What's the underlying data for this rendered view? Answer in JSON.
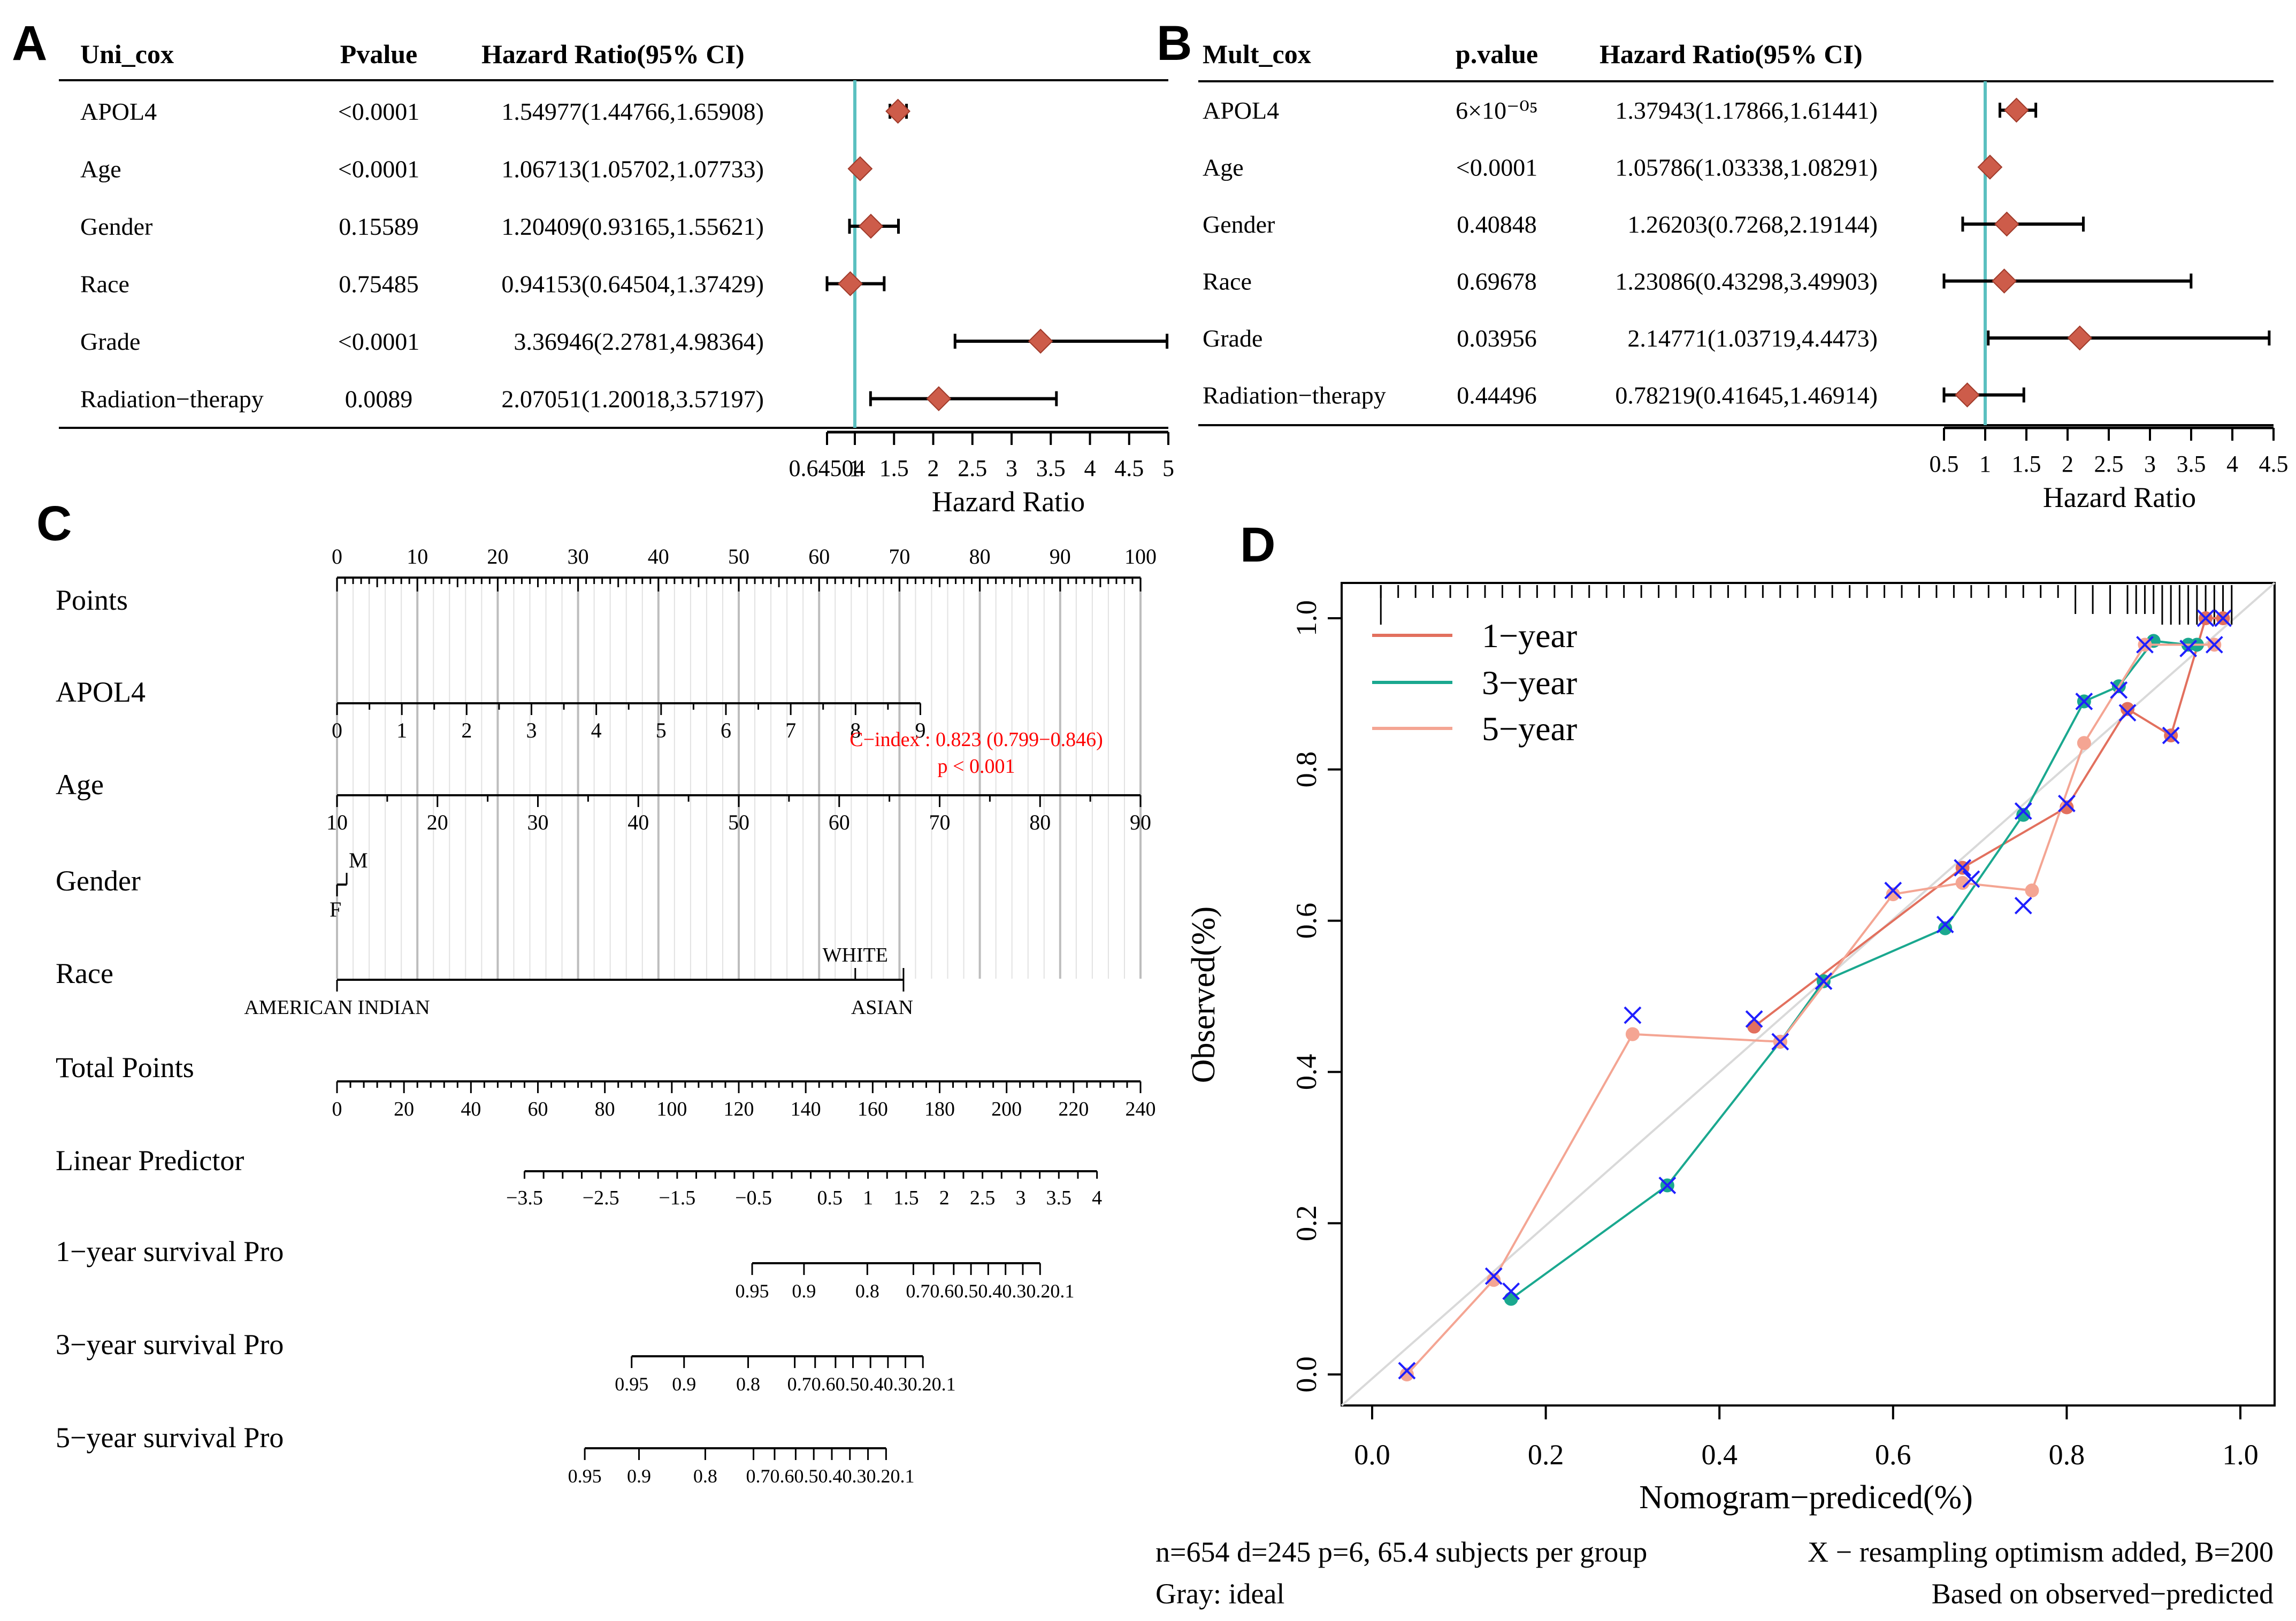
{
  "panels": {
    "a": "A",
    "b": "B",
    "c": "C",
    "d": "D"
  },
  "colors": {
    "diamond": "#cd5c4a",
    "diamond_stroke": "#a03a2a",
    "ref_line": "#5bc0c0",
    "cindex": "#ff0000",
    "line1": "#e2705e",
    "line3": "#1aa88f",
    "line5": "#f4a593",
    "cross": "#1f1fff",
    "ideal": "#d9d9d9"
  },
  "chart_data": [
    {
      "type": "forest",
      "id": "uni_cox",
      "headers": {
        "label": "Uni_cox",
        "p": "Pvalue",
        "hr": "Hazard Ratio(95% CI)"
      },
      "rows": [
        {
          "label": "APOL4",
          "p": "<0.0001",
          "hr_text": "1.54977(1.44766,1.65908)",
          "hr": 1.54977,
          "lo": 1.44766,
          "hi": 1.65908
        },
        {
          "label": "Age",
          "p": "<0.0001",
          "hr_text": "1.06713(1.05702,1.07733)",
          "hr": 1.06713,
          "lo": 1.05702,
          "hi": 1.07733
        },
        {
          "label": "Gender",
          "p": "0.15589",
          "hr_text": "1.20409(0.93165,1.55621)",
          "hr": 1.20409,
          "lo": 0.93165,
          "hi": 1.55621
        },
        {
          "label": "Race",
          "p": "0.75485",
          "hr_text": "0.94153(0.64504,1.37429)",
          "hr": 0.94153,
          "lo": 0.64504,
          "hi": 1.37429
        },
        {
          "label": "Grade",
          "p": "<0.0001",
          "hr_text": "3.36946(2.2781,4.98364)",
          "hr": 3.36946,
          "lo": 2.2781,
          "hi": 4.98364
        },
        {
          "label": "Radiation−therapy",
          "p": "0.0089",
          "hr_text": "2.07051(1.20018,3.57197)",
          "hr": 2.07051,
          "lo": 1.20018,
          "hi": 3.57197
        }
      ],
      "xrange": [
        0.64504,
        5
      ],
      "ref": 1,
      "ticks": [
        0.64504,
        1,
        1.5,
        2,
        2.5,
        3,
        3.5,
        4,
        4.5,
        5
      ],
      "tick_labels": [
        "0.64504",
        "1",
        "1.5",
        "2",
        "2.5",
        "3",
        "3.5",
        "4",
        "4.5",
        "5"
      ],
      "xlabel": "Hazard Ratio"
    },
    {
      "type": "forest",
      "id": "mult_cox",
      "headers": {
        "label": "Mult_cox",
        "p": "p.value",
        "hr": "Hazard Ratio(95% CI)"
      },
      "rows": [
        {
          "label": "APOL4",
          "p": "6×10⁻⁰⁵",
          "hr_text": "1.37943(1.17866,1.61441)",
          "hr": 1.37943,
          "lo": 1.17866,
          "hi": 1.61441
        },
        {
          "label": "Age",
          "p": "<0.0001",
          "hr_text": "1.05786(1.03338,1.08291)",
          "hr": 1.05786,
          "lo": 1.03338,
          "hi": 1.08291
        },
        {
          "label": "Gender",
          "p": "0.40848",
          "hr_text": "1.26203(0.7268,2.19144)",
          "hr": 1.26203,
          "lo": 0.7268,
          "hi": 2.19144
        },
        {
          "label": "Race",
          "p": "0.69678",
          "hr_text": "1.23086(0.43298,3.49903)",
          "hr": 1.23086,
          "lo": 0.43298,
          "hi": 3.49903
        },
        {
          "label": "Grade",
          "p": "0.03956",
          "hr_text": "2.14771(1.03719,4.4473)",
          "hr": 2.14771,
          "lo": 1.03719,
          "hi": 4.4473
        },
        {
          "label": "Radiation−therapy",
          "p": "0.44496",
          "hr_text": "0.78219(0.41645,1.46914)",
          "hr": 0.78219,
          "lo": 0.41645,
          "hi": 1.46914
        }
      ],
      "xrange": [
        0.5,
        4.5
      ],
      "ref": 1,
      "ticks": [
        0.5,
        1,
        1.5,
        2,
        2.5,
        3,
        3.5,
        4,
        4.5
      ],
      "tick_labels": [
        "0.5",
        "1",
        "1.5",
        "2",
        "2.5",
        "3",
        "3.5",
        "4",
        "4.5"
      ],
      "xlabel": "Hazard Ratio"
    },
    {
      "type": "nomogram",
      "id": "nomogram",
      "cindex": "C−index : 0.823 (0.799−0.846)",
      "pvalue": "p < 0.001",
      "rows": [
        {
          "label": "Points",
          "kind": "points",
          "range": [
            0,
            100
          ],
          "labels": [
            "0",
            "10",
            "20",
            "30",
            "40",
            "50",
            "60",
            "70",
            "80",
            "90",
            "100"
          ],
          "values": [
            0,
            10,
            20,
            30,
            40,
            50,
            60,
            70,
            80,
            90,
            100
          ]
        },
        {
          "label": "APOL4",
          "kind": "var",
          "range": [
            0,
            72.6
          ],
          "labels": [
            "0",
            "1",
            "2",
            "3",
            "4",
            "5",
            "6",
            "7",
            "8",
            "9"
          ],
          "values": [
            0,
            1,
            2,
            3,
            4,
            5,
            6,
            7,
            8,
            9
          ],
          "vrange": [
            0,
            9
          ]
        },
        {
          "label": "Age",
          "kind": "var",
          "range": [
            0,
            100
          ],
          "labels": [
            "10",
            "20",
            "30",
            "40",
            "50",
            "60",
            "70",
            "80",
            "90"
          ],
          "values": [
            10,
            20,
            30,
            40,
            50,
            60,
            70,
            80,
            90
          ],
          "vrange": [
            10,
            90
          ]
        },
        {
          "label": "Gender",
          "kind": "cat",
          "above": "M",
          "below": "F",
          "points": 1.2
        },
        {
          "label": "Race",
          "kind": "cat3",
          "left": "AMERICAN INDIAN",
          "mid": "WHITE",
          "right": "ASIAN",
          "mid_points": 64.5,
          "right_points": 70.5
        },
        {
          "label": "Total Points",
          "kind": "points",
          "range": [
            0,
            240
          ],
          "labels": [
            "0",
            "20",
            "40",
            "60",
            "80",
            "100",
            "120",
            "140",
            "160",
            "180",
            "200",
            "220",
            "240"
          ],
          "values": [
            0,
            20,
            40,
            60,
            80,
            100,
            120,
            140,
            160,
            180,
            200,
            220,
            240
          ]
        },
        {
          "label": "Linear Predictor",
          "kind": "lp",
          "labels": [
            "−3.5",
            "−2.5",
            "−1.5",
            "−0.5",
            "0.5",
            "1",
            "1.5",
            "2",
            "2.5",
            "3",
            "3.5",
            "4"
          ],
          "values": [
            -3.5,
            -2.5,
            -1.5,
            -0.5,
            0.5,
            1,
            1.5,
            2,
            2.5,
            3,
            3.5,
            4
          ],
          "vrange": [
            -3.5,
            4
          ],
          "prange": [
            56,
            227
          ]
        },
        {
          "label": "1−year survival Pro",
          "kind": "surv",
          "labels": [
            "0.95",
            "0.9",
            "0.8",
            "0.70.60.50.40.30.20.1"
          ],
          "prange": [
            124,
            210
          ]
        },
        {
          "label": "3−year survival Pro",
          "kind": "surv",
          "labels": [
            "0.95",
            "0.9",
            "0.8",
            "0.70.60.50.40.30.20.1"
          ],
          "prange": [
            88,
            175
          ]
        },
        {
          "label": "5−year survival Pro",
          "kind": "surv",
          "labels": [
            "0.95",
            "0.9",
            "0.8",
            "0.70.60.50.40.30.20.1"
          ],
          "prange": [
            74,
            164
          ]
        }
      ]
    },
    {
      "type": "line",
      "id": "calibration",
      "xlabel": "Nomogram−prediced(%)",
      "ylabel": "Observed(%)",
      "xlim": [
        -0.04,
        1.04
      ],
      "ylim": [
        -0.04,
        1.04
      ],
      "xticks": [
        "0.0",
        "0.2",
        "0.4",
        "0.6",
        "0.8",
        "1.0"
      ],
      "yticks": [
        "0.0",
        "0.2",
        "0.4",
        "0.6",
        "0.8",
        "1.0"
      ],
      "legend": [
        "1−year",
        "3−year",
        "5−year"
      ],
      "series": [
        {
          "name": "1−year",
          "x": [
            0.44,
            0.68,
            0.8,
            0.87,
            0.92,
            0.96,
            0.98
          ],
          "y": [
            0.46,
            0.67,
            0.75,
            0.88,
            0.845,
            1.0,
            1.0
          ]
        },
        {
          "name": "3−year",
          "x": [
            0.16,
            0.34,
            0.47,
            0.52,
            0.66,
            0.75,
            0.82,
            0.86,
            0.9,
            0.94,
            0.95
          ],
          "y": [
            0.1,
            0.25,
            0.44,
            0.52,
            0.59,
            0.74,
            0.89,
            0.91,
            0.97,
            0.965,
            0.965
          ]
        },
        {
          "name": "5−year",
          "x": [
            0.04,
            0.14,
            0.3,
            0.47,
            0.6,
            0.68,
            0.76,
            0.82,
            0.89,
            0.97
          ],
          "y": [
            0.0,
            0.125,
            0.45,
            0.44,
            0.635,
            0.65,
            0.64,
            0.835,
            0.965,
            0.965
          ]
        }
      ],
      "crosses": {
        "x": [
          0.04,
          0.14,
          0.16,
          0.3,
          0.34,
          0.44,
          0.47,
          0.52,
          0.6,
          0.66,
          0.68,
          0.69,
          0.75,
          0.75,
          0.8,
          0.82,
          0.86,
          0.87,
          0.89,
          0.92,
          0.94,
          0.96,
          0.97,
          0.98
        ],
        "y": [
          0.005,
          0.13,
          0.11,
          0.475,
          0.25,
          0.47,
          0.44,
          0.52,
          0.64,
          0.595,
          0.67,
          0.655,
          0.745,
          0.62,
          0.755,
          0.89,
          0.905,
          0.875,
          0.965,
          0.845,
          0.96,
          1.0,
          0.965,
          1.0
        ]
      },
      "rug": [
        0.01,
        0.03,
        0.05,
        0.07,
        0.09,
        0.11,
        0.13,
        0.15,
        0.17,
        0.19,
        0.21,
        0.23,
        0.25,
        0.27,
        0.29,
        0.31,
        0.33,
        0.35,
        0.37,
        0.39,
        0.41,
        0.43,
        0.45,
        0.47,
        0.49,
        0.51,
        0.53,
        0.55,
        0.57,
        0.59,
        0.61,
        0.63,
        0.65,
        0.67,
        0.69,
        0.71,
        0.73,
        0.75,
        0.77,
        0.79,
        0.81,
        0.83,
        0.85,
        0.87,
        0.88,
        0.89,
        0.9,
        0.91,
        0.92,
        0.93,
        0.94,
        0.95,
        0.96,
        0.97,
        0.98,
        0.99
      ],
      "note_left1": "n=654 d=245 p=6, 65.4 subjects per group",
      "note_left2": "Gray: ideal",
      "note_right1": "X − resampling optimism added, B=200",
      "note_right2": "Based on observed−predicted"
    }
  ]
}
